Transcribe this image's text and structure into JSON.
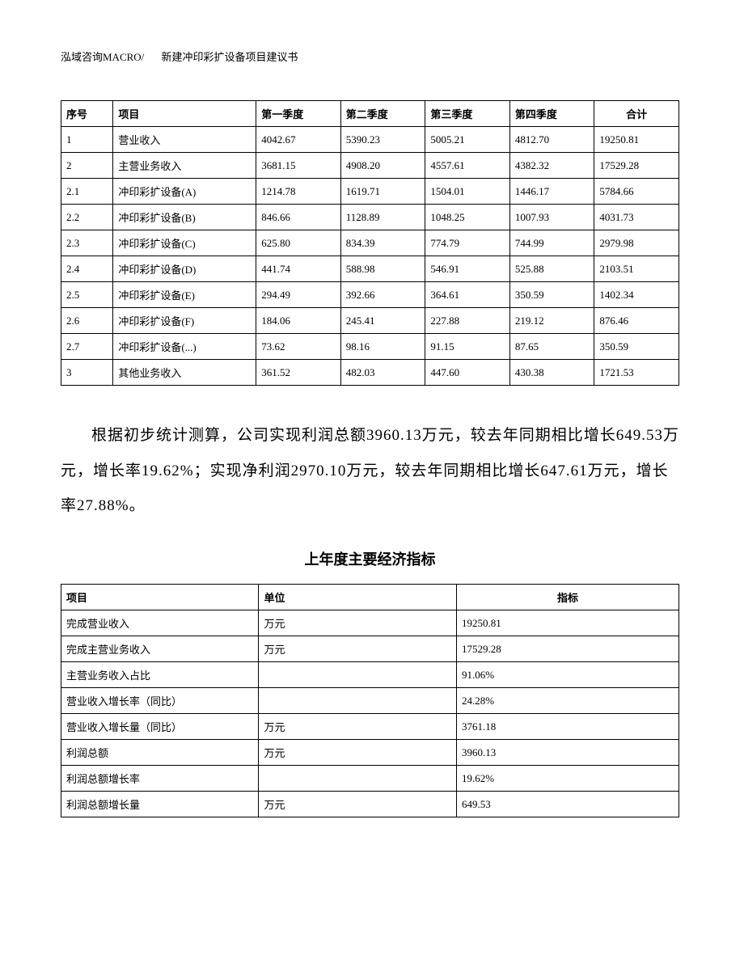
{
  "header": {
    "company": "泓域咨询MACRO/",
    "doc_title": "新建冲印彩扩设备项目建议书"
  },
  "quarterly_table": {
    "headers": {
      "seq": "序号",
      "item": "项目",
      "q1": "第一季度",
      "q2": "第二季度",
      "q3": "第三季度",
      "q4": "第四季度",
      "total": "合计"
    },
    "rows": [
      {
        "seq": "1",
        "item": "营业收入",
        "q1": "4042.67",
        "q2": "5390.23",
        "q3": "5005.21",
        "q4": "4812.70",
        "total": "19250.81"
      },
      {
        "seq": "2",
        "item": "主营业务收入",
        "q1": "3681.15",
        "q2": "4908.20",
        "q3": "4557.61",
        "q4": "4382.32",
        "total": "17529.28"
      },
      {
        "seq": "2.1",
        "item": "冲印彩扩设备(A)",
        "q1": "1214.78",
        "q2": "1619.71",
        "q3": "1504.01",
        "q4": "1446.17",
        "total": "5784.66"
      },
      {
        "seq": "2.2",
        "item": "冲印彩扩设备(B)",
        "q1": "846.66",
        "q2": "1128.89",
        "q3": "1048.25",
        "q4": "1007.93",
        "total": "4031.73"
      },
      {
        "seq": "2.3",
        "item": "冲印彩扩设备(C)",
        "q1": "625.80",
        "q2": "834.39",
        "q3": "774.79",
        "q4": "744.99",
        "total": "2979.98"
      },
      {
        "seq": "2.4",
        "item": "冲印彩扩设备(D)",
        "q1": "441.74",
        "q2": "588.98",
        "q3": "546.91",
        "q4": "525.88",
        "total": "2103.51"
      },
      {
        "seq": "2.5",
        "item": "冲印彩扩设备(E)",
        "q1": "294.49",
        "q2": "392.66",
        "q3": "364.61",
        "q4": "350.59",
        "total": "1402.34"
      },
      {
        "seq": "2.6",
        "item": "冲印彩扩设备(F)",
        "q1": "184.06",
        "q2": "245.41",
        "q3": "227.88",
        "q4": "219.12",
        "total": "876.46"
      },
      {
        "seq": "2.7",
        "item": "冲印彩扩设备(...)",
        "q1": "73.62",
        "q2": "98.16",
        "q3": "91.15",
        "q4": "87.65",
        "total": "350.59"
      },
      {
        "seq": "3",
        "item": "其他业务收入",
        "q1": "361.52",
        "q2": "482.03",
        "q3": "447.60",
        "q4": "430.38",
        "total": "1721.53"
      }
    ]
  },
  "paragraph": "根据初步统计测算，公司实现利润总额3960.13万元，较去年同期相比增长649.53万元，增长率19.62%；实现净利润2970.10万元，较去年同期相比增长647.61万元，增长率27.88%。",
  "section_title": "上年度主要经济指标",
  "indicator_table": {
    "headers": {
      "project": "项目",
      "unit": "单位",
      "value": "指标"
    },
    "rows": [
      {
        "project": "完成营业收入",
        "unit": "万元",
        "value": "19250.81"
      },
      {
        "project": "完成主营业务收入",
        "unit": "万元",
        "value": "17529.28"
      },
      {
        "project": "主营业务收入占比",
        "unit": "",
        "value": "91.06%"
      },
      {
        "project": "营业收入增长率（同比）",
        "unit": "",
        "value": "24.28%"
      },
      {
        "project": "营业收入增长量（同比）",
        "unit": "万元",
        "value": "3761.18"
      },
      {
        "project": "利润总额",
        "unit": "万元",
        "value": "3960.13"
      },
      {
        "project": "利润总额增长率",
        "unit": "",
        "value": "19.62%"
      },
      {
        "project": "利润总额增长量",
        "unit": "万元",
        "value": "649.53"
      }
    ]
  }
}
